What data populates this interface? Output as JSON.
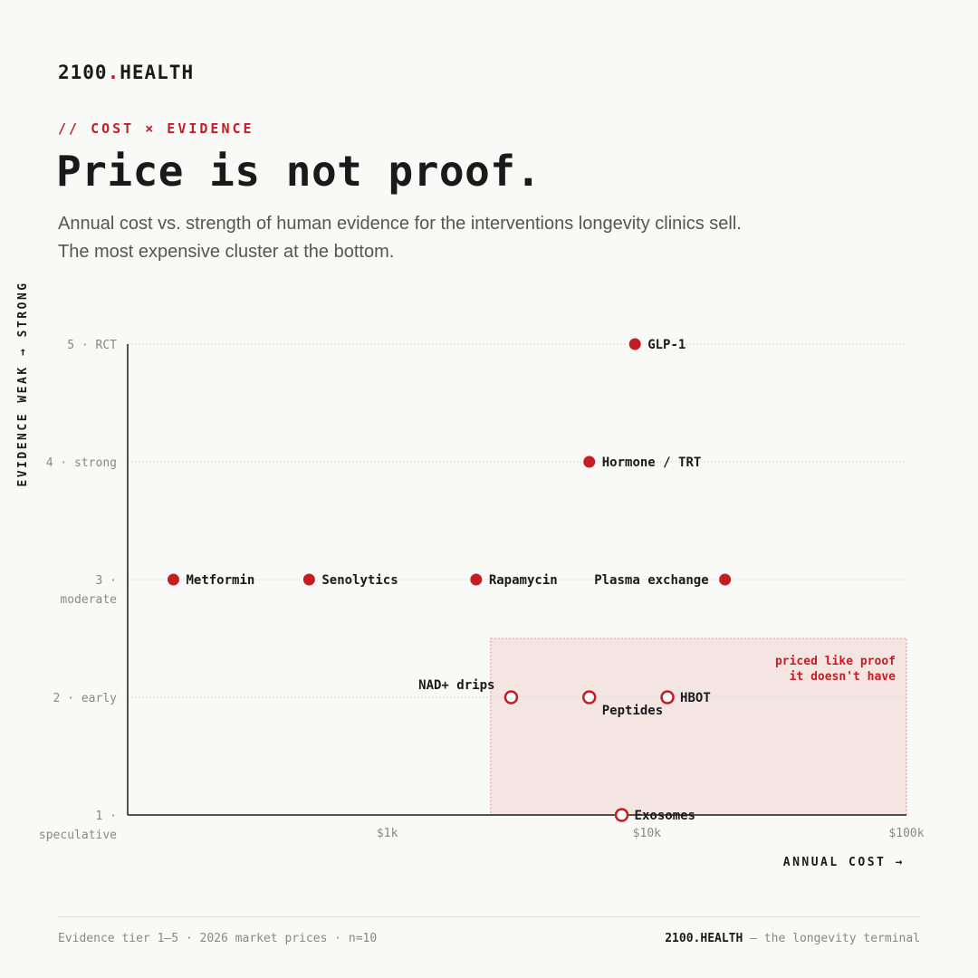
{
  "brand": {
    "name": "2100",
    "dot": ".",
    "suffix": "HEALTH"
  },
  "kicker": "// COST × EVIDENCE",
  "title": "Price is not proof.",
  "subtitle": "Annual cost vs. strength of human evidence for the interventions longevity clinics sell. The most expensive cluster at the bottom.",
  "colors": {
    "accent": "#c41e24",
    "background": "#f9f9f7",
    "text": "#1a1a1a",
    "muted": "#888888"
  },
  "chart_data": {
    "type": "scatter",
    "xlabel": "ANNUAL COST →",
    "ylabel": "EVIDENCE WEAK → STRONG",
    "x_scale": "log",
    "xlim": [
      100,
      100000
    ],
    "ylim": [
      1,
      5
    ],
    "x_ticks": [
      {
        "value": 1000,
        "label": "$1k"
      },
      {
        "value": 10000,
        "label": "$10k"
      },
      {
        "value": 100000,
        "label": "$100k"
      }
    ],
    "y_ticks": [
      {
        "value": 5,
        "label": "5 · RCT"
      },
      {
        "value": 4,
        "label": "4 · strong"
      },
      {
        "value": 3,
        "label": "3 ·",
        "sub": "moderate"
      },
      {
        "value": 2,
        "label": "2 · early"
      },
      {
        "value": 1,
        "label": "1 ·",
        "sub": "speculative"
      }
    ],
    "grid": true,
    "highlight_region": {
      "x_range": [
        2500,
        100000
      ],
      "y_range": [
        1,
        2.5
      ],
      "note": [
        "priced like proof",
        "it doesn't have"
      ]
    },
    "points": [
      {
        "name": "GLP-1",
        "x": 9000,
        "y": 5,
        "style": "filled",
        "label_side": "right"
      },
      {
        "name": "Hormone / TRT",
        "x": 6000,
        "y": 4,
        "style": "filled",
        "label_side": "right"
      },
      {
        "name": "Metformin",
        "x": 150,
        "y": 3,
        "style": "filled",
        "label_side": "right"
      },
      {
        "name": "Senolytics",
        "x": 500,
        "y": 3,
        "style": "filled",
        "label_side": "right"
      },
      {
        "name": "Rapamycin",
        "x": 2200,
        "y": 3,
        "style": "filled",
        "label_side": "right"
      },
      {
        "name": "Plasma exchange",
        "x": 20000,
        "y": 3,
        "style": "filled",
        "label_side": "left"
      },
      {
        "name": "NAD+ drips",
        "x": 3000,
        "y": 2,
        "style": "hollow",
        "label_side": "upper-left"
      },
      {
        "name": "Peptides",
        "x": 6000,
        "y": 2,
        "style": "hollow",
        "label_side": "lower-right"
      },
      {
        "name": "HBOT",
        "x": 12000,
        "y": 2,
        "style": "hollow",
        "label_side": "right"
      },
      {
        "name": "Exosomes",
        "x": 8000,
        "y": 1,
        "style": "hollow",
        "label_side": "right"
      }
    ]
  },
  "footer": {
    "left": "Evidence tier 1–5 · 2026 market prices · n=10",
    "brand": "2100.HEALTH",
    "tagline": " — the longevity terminal"
  }
}
